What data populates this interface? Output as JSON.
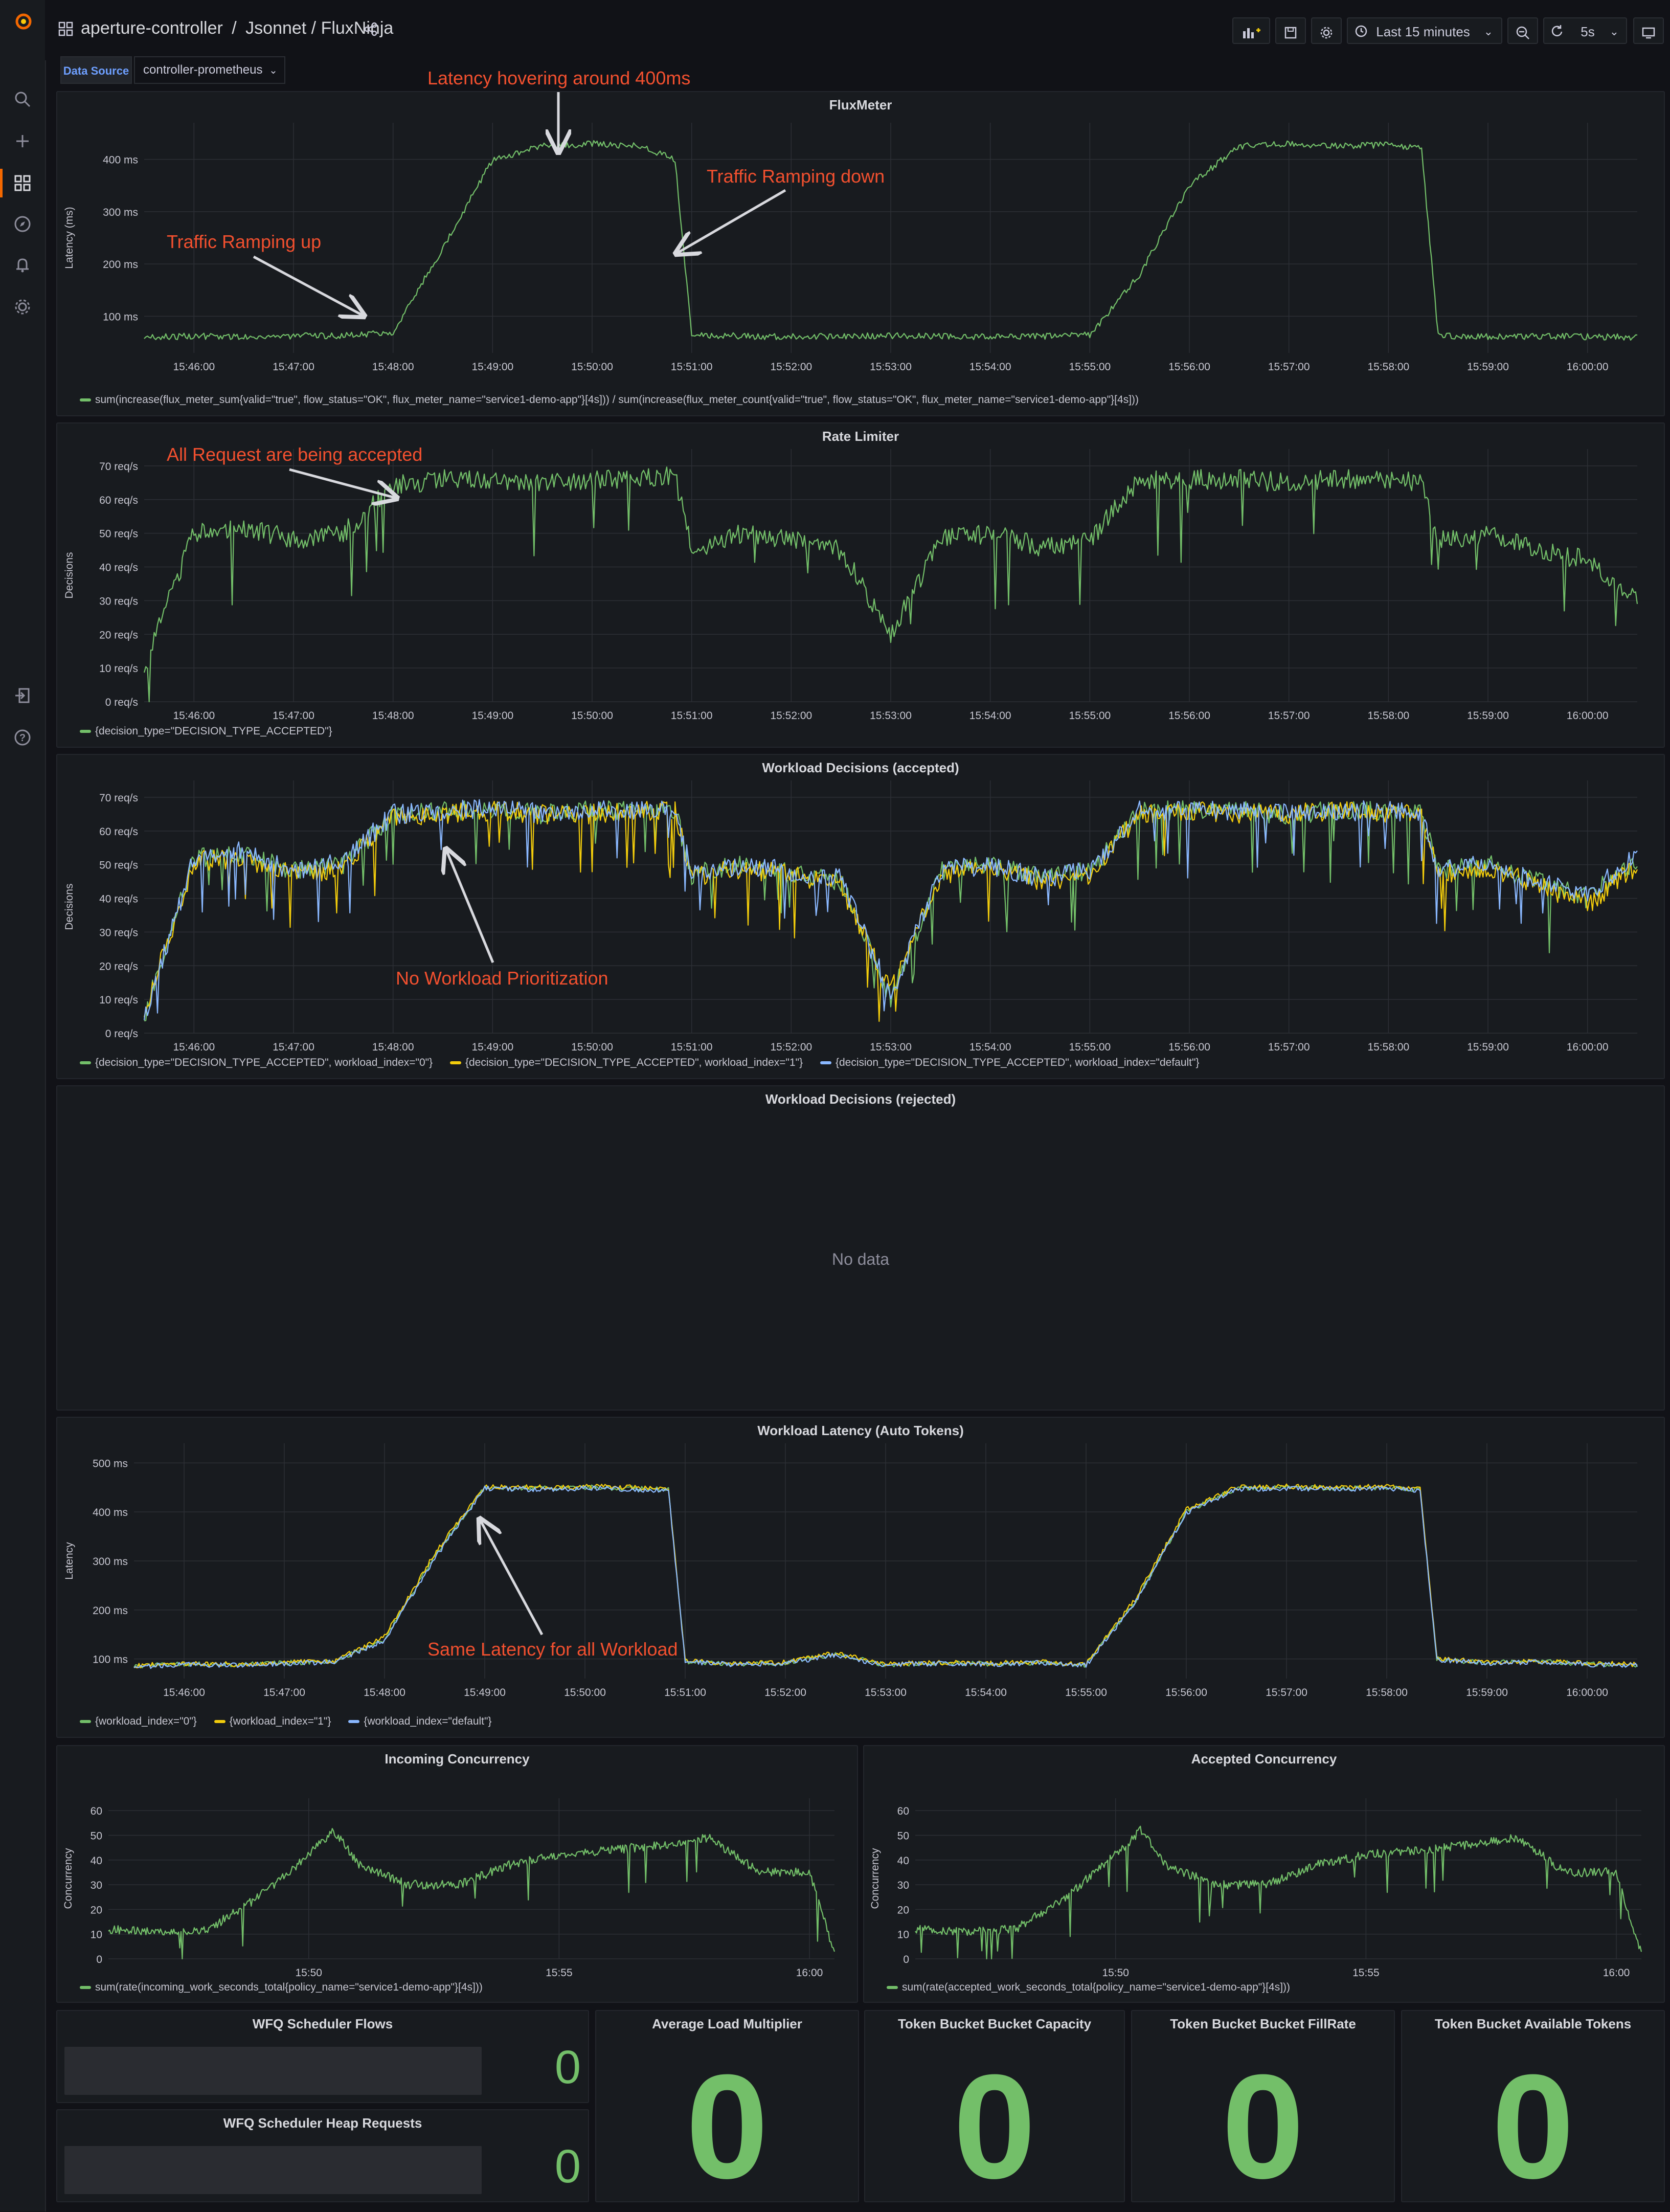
{
  "breadcrumb": {
    "folder": "aperture-controller",
    "sep": "/",
    "path": "Jsonnet / FluxNinja"
  },
  "toolbar": {
    "time_range": "Last 15 minutes",
    "refresh": "5s"
  },
  "datasource": {
    "label": "Data Source",
    "value": "controller-prometheus"
  },
  "time_ticks": [
    "15:46:00",
    "15:47:00",
    "15:48:00",
    "15:49:00",
    "15:50:00",
    "15:51:00",
    "15:52:00",
    "15:53:00",
    "15:54:00",
    "15:55:00",
    "15:56:00",
    "15:57:00",
    "15:58:00",
    "15:59:00",
    "16:00:00"
  ],
  "time_ticks_short": [
    "15:50",
    "15:55",
    "16:00"
  ],
  "colors": {
    "green": "#73bf69",
    "yellow": "#f2cc0c",
    "blue": "#8ab8ff",
    "annotation": "#f2502f",
    "background": "#111217",
    "panel": "#181b1f"
  },
  "panels": {
    "fluxmeter": {
      "title": "FluxMeter",
      "ylabel": "Latency (ms)",
      "yticks": [
        "100 ms",
        "200 ms",
        "300 ms",
        "400 ms"
      ],
      "legend": "sum(increase(flux_meter_sum{valid=\"true\", flow_status=\"OK\", flux_meter_name=\"service1-demo-app\"}[4s])) / sum(increase(flux_meter_count{valid=\"true\", flow_status=\"OK\", flux_meter_name=\"service1-demo-app\"}[4s]))",
      "annotations": [
        "Latency hovering around 400ms",
        "Traffic Ramping down",
        "Traffic Ramping up"
      ]
    },
    "ratelimiter": {
      "title": "Rate Limiter",
      "ylabel": "Decisions",
      "yticks": [
        "0 req/s",
        "10 req/s",
        "20 req/s",
        "30 req/s",
        "40 req/s",
        "50 req/s",
        "60 req/s",
        "70 req/s"
      ],
      "legend": "{decision_type=\"DECISION_TYPE_ACCEPTED\"}",
      "annotations": [
        "All Request are being accepted"
      ]
    },
    "wd_accepted": {
      "title": "Workload Decisions (accepted)",
      "ylabel": "Decisions",
      "yticks": [
        "0 req/s",
        "10 req/s",
        "20 req/s",
        "30 req/s",
        "40 req/s",
        "50 req/s",
        "60 req/s",
        "70 req/s"
      ],
      "legend": [
        "{decision_type=\"DECISION_TYPE_ACCEPTED\", workload_index=\"0\"}",
        "{decision_type=\"DECISION_TYPE_ACCEPTED\", workload_index=\"1\"}",
        "{decision_type=\"DECISION_TYPE_ACCEPTED\", workload_index=\"default\"}"
      ],
      "annotations": [
        "No Workload Prioritization"
      ]
    },
    "wd_rejected": {
      "title": "Workload Decisions (rejected)",
      "nodata": "No data"
    },
    "wl_latency": {
      "title": "Workload Latency (Auto Tokens)",
      "ylabel": "Latency",
      "yticks": [
        "100 ms",
        "200 ms",
        "300 ms",
        "400 ms",
        "500 ms"
      ],
      "legend": [
        "{workload_index=\"0\"}",
        "{workload_index=\"1\"}",
        "{workload_index=\"default\"}"
      ],
      "annotations": [
        "Same Latency for all Workload"
      ]
    },
    "incoming": {
      "title": "Incoming Concurrency",
      "ylabel": "Concurrency",
      "yticks": [
        "0",
        "10",
        "20",
        "30",
        "40",
        "50",
        "60"
      ],
      "legend": "sum(rate(incoming_work_seconds_total{policy_name=\"service1-demo-app\"}[4s]))"
    },
    "accepted": {
      "title": "Accepted Concurrency",
      "ylabel": "Concurrency",
      "yticks": [
        "0",
        "10",
        "20",
        "30",
        "40",
        "50",
        "60"
      ],
      "legend": "sum(rate(accepted_work_seconds_total{policy_name=\"service1-demo-app\"}[4s]))"
    }
  },
  "stats": [
    {
      "title": "WFQ Scheduler Flows",
      "value": "0"
    },
    {
      "title": "WFQ Scheduler Heap Requests",
      "value": "0"
    },
    {
      "title": "Average Load Multiplier",
      "value": "0"
    },
    {
      "title": "Token Bucket Bucket Capacity",
      "value": "0"
    },
    {
      "title": "Token Bucket Bucket FillRate",
      "value": "0"
    },
    {
      "title": "Token Bucket Available Tokens",
      "value": "0"
    }
  ],
  "chart_data": [
    {
      "type": "line",
      "title": "FluxMeter",
      "ylabel": "Latency (ms)",
      "ylim": [
        30,
        470
      ],
      "x": [
        "15:45:30",
        "15:46:00",
        "15:46:30",
        "15:47:00",
        "15:47:30",
        "15:48:00",
        "15:48:30",
        "15:49:00",
        "15:49:30",
        "15:50:00",
        "15:50:30",
        "15:50:50",
        "15:51:00",
        "15:51:30",
        "15:52:00",
        "15:52:30",
        "15:53:00",
        "15:53:30",
        "15:54:00",
        "15:54:30",
        "15:55:00",
        "15:55:30",
        "15:56:00",
        "15:56:30",
        "15:57:00",
        "15:57:30",
        "15:58:00",
        "15:58:20",
        "15:58:30",
        "15:59:00",
        "15:59:30",
        "16:00:00",
        "16:00:30"
      ],
      "series": [
        {
          "name": "latency",
          "values": [
            60,
            62,
            61,
            62,
            63,
            70,
            230,
            400,
            425,
            430,
            425,
            400,
            65,
            62,
            61,
            62,
            63,
            62,
            61,
            62,
            64,
            180,
            350,
            425,
            430,
            425,
            428,
            420,
            62,
            61,
            62,
            61,
            60
          ]
        }
      ]
    },
    {
      "type": "line",
      "title": "Rate Limiter",
      "ylabel": "Decisions",
      "ylim": [
        0,
        75
      ],
      "x": [
        "15:45:30",
        "15:46:00",
        "15:46:30",
        "15:47:00",
        "15:47:30",
        "15:48:00",
        "15:48:30",
        "15:49:00",
        "15:49:30",
        "15:50:00",
        "15:50:30",
        "15:50:50",
        "15:51:00",
        "15:51:30",
        "15:52:00",
        "15:52:30",
        "15:53:00",
        "15:53:30",
        "15:54:00",
        "15:54:30",
        "15:55:00",
        "15:55:30",
        "15:56:00",
        "15:56:30",
        "15:57:00",
        "15:57:30",
        "15:58:00",
        "15:58:20",
        "15:58:30",
        "15:59:00",
        "15:59:30",
        "16:00:00",
        "16:00:30"
      ],
      "series": [
        {
          "name": "{decision_type=\"DECISION_TYPE_ACCEPTED\"}",
          "values": [
            10,
            50,
            52,
            48,
            50,
            64,
            66,
            66,
            65,
            66,
            66,
            67,
            45,
            50,
            48,
            45,
            20,
            48,
            50,
            46,
            48,
            66,
            66,
            66,
            65,
            66,
            66,
            65,
            48,
            50,
            45,
            42,
            30
          ]
        }
      ]
    },
    {
      "type": "line",
      "title": "Workload Decisions (accepted)",
      "ylabel": "Decisions",
      "ylim": [
        0,
        75
      ],
      "x": [
        "15:45:30",
        "15:46:00",
        "15:46:30",
        "15:47:00",
        "15:47:30",
        "15:48:00",
        "15:48:30",
        "15:49:00",
        "15:49:30",
        "15:50:00",
        "15:50:30",
        "15:50:50",
        "15:51:00",
        "15:51:30",
        "15:52:00",
        "15:52:30",
        "15:53:00",
        "15:53:30",
        "15:54:00",
        "15:54:30",
        "15:55:00",
        "15:55:30",
        "15:56:00",
        "15:56:30",
        "15:57:00",
        "15:57:30",
        "15:58:00",
        "15:58:20",
        "15:58:30",
        "15:59:00",
        "15:59:30",
        "16:00:00",
        "16:00:30"
      ],
      "series": [
        {
          "name": "workload_index=0",
          "values": [
            5,
            52,
            53,
            48,
            50,
            65,
            66,
            66,
            65,
            66,
            66,
            66,
            47,
            50,
            48,
            45,
            10,
            48,
            50,
            46,
            48,
            66,
            66,
            66,
            65,
            66,
            66,
            65,
            48,
            50,
            45,
            40,
            52
          ]
        },
        {
          "name": "workload_index=1",
          "values": [
            6,
            51,
            52,
            47,
            49,
            64,
            65,
            66,
            65,
            65,
            66,
            66,
            46,
            49,
            47,
            44,
            12,
            47,
            49,
            45,
            47,
            65,
            66,
            65,
            65,
            66,
            65,
            65,
            47,
            49,
            44,
            38,
            50
          ]
        },
        {
          "name": "workload_index=default",
          "values": [
            5,
            52,
            54,
            48,
            51,
            65,
            66,
            67,
            65,
            66,
            66,
            67,
            47,
            50,
            48,
            46,
            11,
            48,
            50,
            46,
            48,
            66,
            66,
            66,
            65,
            66,
            66,
            65,
            48,
            51,
            45,
            41,
            53
          ]
        }
      ]
    },
    {
      "type": "line",
      "title": "Workload Latency (Auto Tokens)",
      "ylabel": "Latency",
      "ylim": [
        60,
        540
      ],
      "x": [
        "15:45:30",
        "15:46:00",
        "15:46:30",
        "15:47:00",
        "15:47:30",
        "15:48:00",
        "15:48:30",
        "15:49:00",
        "15:49:30",
        "15:50:00",
        "15:50:30",
        "15:50:50",
        "15:51:00",
        "15:51:30",
        "15:52:00",
        "15:52:30",
        "15:53:00",
        "15:53:30",
        "15:54:00",
        "15:54:30",
        "15:55:00",
        "15:55:30",
        "15:56:00",
        "15:56:30",
        "15:57:00",
        "15:57:30",
        "15:58:00",
        "15:58:20",
        "15:58:30",
        "15:59:00",
        "15:59:30",
        "16:00:00",
        "16:00:30"
      ],
      "series": [
        {
          "name": "{workload_index=\"0\"}",
          "values": [
            85,
            90,
            88,
            92,
            95,
            140,
            310,
            450,
            448,
            450,
            448,
            445,
            95,
            90,
            92,
            110,
            88,
            92,
            90,
            93,
            88,
            220,
            400,
            448,
            450,
            448,
            450,
            445,
            100,
            92,
            95,
            90,
            88
          ]
        },
        {
          "name": "{workload_index=\"1\"}",
          "values": [
            86,
            91,
            89,
            93,
            96,
            145,
            315,
            452,
            450,
            452,
            450,
            448,
            96,
            91,
            93,
            112,
            89,
            93,
            91,
            94,
            89,
            225,
            405,
            450,
            452,
            450,
            452,
            448,
            101,
            93,
            96,
            91,
            89
          ]
        },
        {
          "name": "{workload_index=\"default\"}",
          "values": [
            84,
            89,
            87,
            91,
            94,
            138,
            305,
            448,
            446,
            448,
            446,
            443,
            94,
            89,
            91,
            108,
            87,
            91,
            89,
            92,
            87,
            218,
            398,
            446,
            448,
            446,
            448,
            443,
            99,
            91,
            94,
            89,
            87
          ]
        }
      ]
    },
    {
      "type": "line",
      "title": "Incoming Concurrency",
      "ylabel": "Concurrency",
      "ylim": [
        0,
        65
      ],
      "x": [
        "15:46",
        "15:47",
        "15:48",
        "15:49",
        "15:50",
        "15:50:30",
        "15:51",
        "15:52",
        "15:53",
        "15:54",
        "15:55",
        "15:56",
        "15:57",
        "15:58",
        "15:59",
        "16:00",
        "16:00:30"
      ],
      "series": [
        {
          "name": "incoming",
          "values": [
            12,
            11,
            12,
            25,
            42,
            52,
            38,
            30,
            30,
            38,
            42,
            44,
            46,
            49,
            35,
            35,
            2
          ]
        }
      ]
    },
    {
      "type": "line",
      "title": "Accepted Concurrency",
      "ylabel": "Concurrency",
      "ylim": [
        0,
        65
      ],
      "x": [
        "15:46",
        "15:47",
        "15:48",
        "15:49",
        "15:50",
        "15:50:30",
        "15:51",
        "15:52",
        "15:53",
        "15:54",
        "15:55",
        "15:56",
        "15:57",
        "15:58",
        "15:59",
        "16:00",
        "16:00:30"
      ],
      "series": [
        {
          "name": "accepted",
          "values": [
            12,
            11,
            12,
            25,
            42,
            52,
            38,
            30,
            30,
            38,
            42,
            44,
            46,
            49,
            35,
            35,
            2
          ]
        }
      ]
    }
  ]
}
